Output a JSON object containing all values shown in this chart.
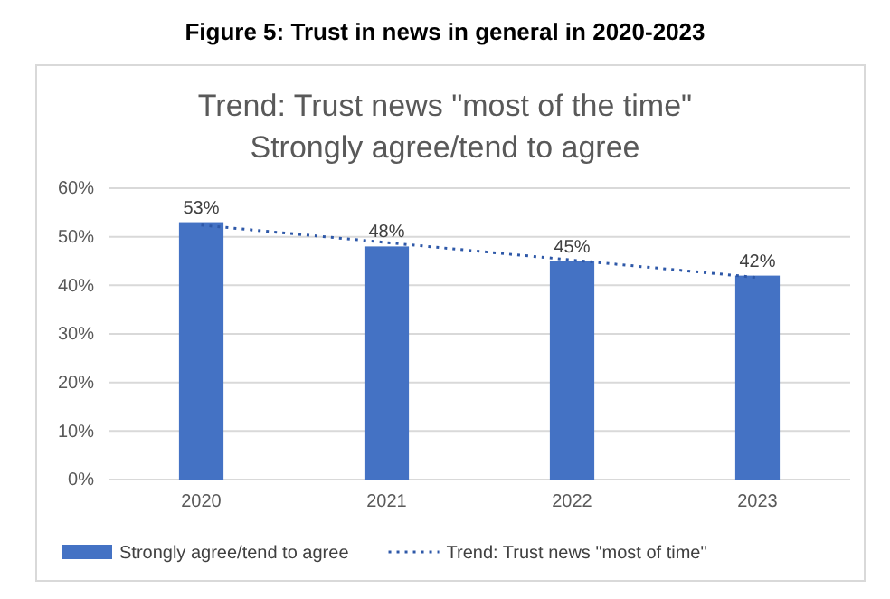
{
  "chart_data": {
    "type": "bar",
    "title": "Figure 5: Trust in news in general in 2020-2023",
    "subtitle": "Trend: Trust news \"most of the time\"\nStrongly agree/tend to agree",
    "categories": [
      "2020",
      "2021",
      "2022",
      "2023"
    ],
    "series": [
      {
        "name": "Strongly agree/tend to agree",
        "type": "bar",
        "color": "#4472c4",
        "values": [
          53,
          48,
          45,
          42
        ],
        "value_labels": [
          "53%",
          "48%",
          "45%",
          "42%"
        ]
      },
      {
        "name": "Trend: Trust news \"most of time\"",
        "type": "line",
        "color": "#2e58a8",
        "line_style": "dotted",
        "values": [
          52.4,
          48.8,
          45.2,
          41.6
        ]
      }
    ],
    "ylim": [
      0,
      60
    ],
    "yticks": [
      {
        "value": 0,
        "label": "0%"
      },
      {
        "value": 10,
        "label": "10%"
      },
      {
        "value": 20,
        "label": "20%"
      },
      {
        "value": 30,
        "label": "30%"
      },
      {
        "value": 40,
        "label": "40%"
      },
      {
        "value": 50,
        "label": "50%"
      },
      {
        "value": 60,
        "label": "60%"
      }
    ],
    "grid": "y",
    "legend": "bottom"
  }
}
